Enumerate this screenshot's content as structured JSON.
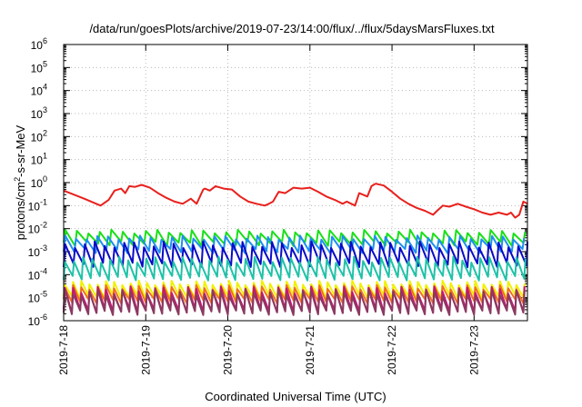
{
  "chart_data": {
    "type": "line",
    "title": "/data/run/goesPlots/archive/2019-07-23/14:00/flux/../flux/5daysMarsFluxes.txt",
    "xlabel": "Coordinated Universal Time (UTC)",
    "ylabel_parts": [
      "protons/cm",
      "2",
      "-s-sr-MeV"
    ],
    "x_ticks": [
      "2019-7-18",
      "2019-7-19",
      "2019-7-20",
      "2019-7-21",
      "2019-7-22",
      "2019-7-23"
    ],
    "x_range_days": [
      0,
      5.65
    ],
    "y_scale": "log",
    "y_range": [
      1e-06,
      1000000.0
    ],
    "y_ticks": [
      {
        "base": "10",
        "exp": "6",
        "value": 1000000.0
      },
      {
        "base": "10",
        "exp": "5",
        "value": 100000.0
      },
      {
        "base": "10",
        "exp": "4",
        "value": 10000.0
      },
      {
        "base": "10",
        "exp": "3",
        "value": 1000.0
      },
      {
        "base": "10",
        "exp": "2",
        "value": 100.0
      },
      {
        "base": "10",
        "exp": "1",
        "value": 10.0
      },
      {
        "base": "10",
        "exp": "0",
        "value": 1.0
      },
      {
        "base": "10",
        "exp": "-1",
        "value": 0.1
      },
      {
        "base": "10",
        "exp": "-2",
        "value": 0.01
      },
      {
        "base": "10",
        "exp": "-3",
        "value": 0.001
      },
      {
        "base": "10",
        "exp": "-4",
        "value": 0.0001
      },
      {
        "base": "10",
        "exp": "-5",
        "value": 1e-05
      },
      {
        "base": "10",
        "exp": "-6",
        "value": 1e-06
      }
    ],
    "grid": true,
    "legend": "none",
    "series": [
      {
        "color": "#e8201c",
        "x": [
          0,
          0.25,
          0.45,
          0.55,
          0.62,
          0.7,
          0.75,
          0.8,
          0.87,
          0.95,
          1.05,
          1.15,
          1.25,
          1.35,
          1.45,
          1.55,
          1.62,
          1.7,
          1.72,
          1.78,
          1.85,
          1.95,
          2.05,
          2.15,
          2.25,
          2.35,
          2.45,
          2.5,
          2.55,
          2.62,
          2.7,
          2.8,
          2.9,
          3.0,
          3.1,
          3.2,
          3.3,
          3.4,
          3.45,
          3.55,
          3.6,
          3.7,
          3.75,
          3.8,
          3.9,
          4.0,
          4.1,
          4.2,
          4.3,
          4.4,
          4.5,
          4.55,
          4.62,
          4.7,
          4.8,
          4.9,
          5.0,
          5.1,
          5.2,
          5.3,
          5.4,
          5.45,
          5.5,
          5.55,
          5.6,
          5.65
        ],
        "y": [
          0.45,
          0.2,
          0.1,
          0.18,
          0.45,
          0.55,
          0.35,
          0.7,
          0.65,
          0.8,
          0.6,
          0.35,
          0.22,
          0.15,
          0.12,
          0.2,
          0.12,
          0.5,
          0.55,
          0.45,
          0.7,
          0.55,
          0.5,
          0.25,
          0.15,
          0.12,
          0.1,
          0.12,
          0.15,
          0.4,
          0.35,
          0.6,
          0.55,
          0.6,
          0.4,
          0.25,
          0.18,
          0.12,
          0.15,
          0.1,
          0.35,
          0.25,
          0.7,
          0.9,
          0.75,
          0.4,
          0.2,
          0.12,
          0.08,
          0.06,
          0.04,
          0.06,
          0.1,
          0.09,
          0.12,
          0.09,
          0.07,
          0.05,
          0.04,
          0.05,
          0.04,
          0.05,
          0.03,
          0.04,
          0.15,
          0.12
        ]
      },
      {
        "color": "#19e019",
        "low": 0.0025,
        "high": 0.009,
        "period": 0.14
      },
      {
        "color": "#1e8ff0",
        "low": 0.0012,
        "high": 0.005,
        "period": 0.13
      },
      {
        "color": "#0a0ac8",
        "low": 0.0003,
        "high": 0.0028,
        "period": 0.12
      },
      {
        "color": "#1fc2a8",
        "low": 8e-05,
        "high": 0.0006,
        "period": 0.11
      },
      {
        "color": "#f0f000",
        "low": 1.2e-05,
        "high": 5.5e-05,
        "period": 0.1
      },
      {
        "color": "#f07020",
        "low": 8e-06,
        "high": 3.5e-05,
        "period": 0.1
      },
      {
        "color": "#c01878",
        "low": 3e-06,
        "high": 3e-05,
        "period": 0.1
      },
      {
        "color": "#8a3a60",
        "low": 2.5e-06,
        "high": 2.2e-05,
        "period": 0.1
      }
    ]
  }
}
